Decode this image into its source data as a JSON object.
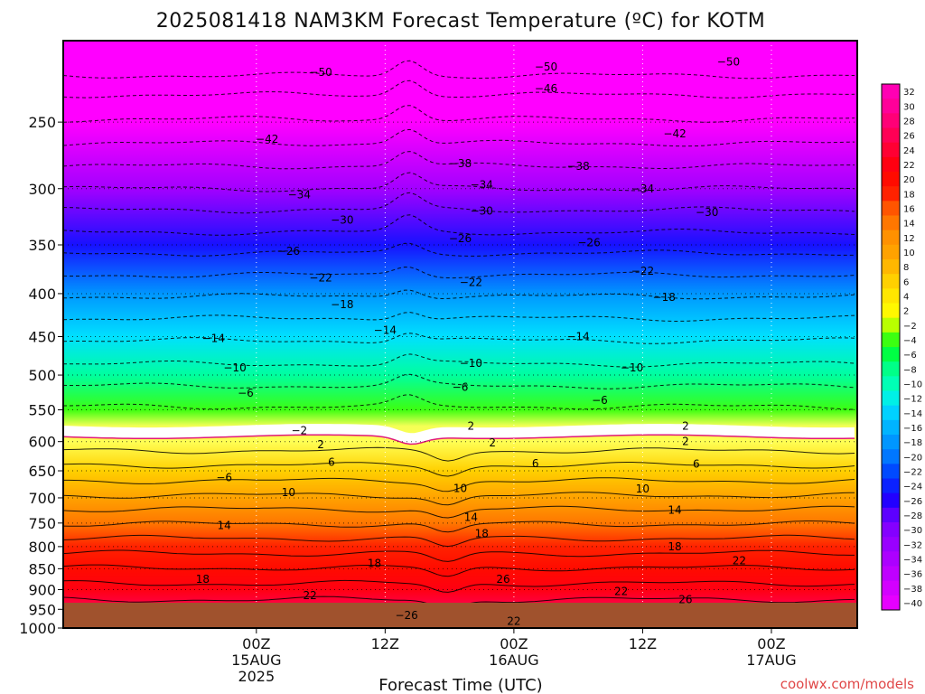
{
  "chart_data": {
    "type": "heatmap",
    "title": "2025081418 NAM3KM Forecast Temperature (ºC) for KOTM",
    "xlabel": "Forecast Time (UTC)",
    "ylabel": "",
    "credit": "coolwx.com/models",
    "y_scale": "log",
    "y_inverted": true,
    "ylim": [
      1000,
      200
    ],
    "y_ticks": [
      250,
      300,
      350,
      400,
      450,
      500,
      550,
      600,
      650,
      700,
      750,
      800,
      850,
      900,
      950,
      1000
    ],
    "x_ticks": [
      {
        "line1": "00Z",
        "line2": "15AUG",
        "line3": "2025"
      },
      {
        "line1": "12Z",
        "line2": "",
        "line3": ""
      },
      {
        "line1": "00Z",
        "line2": "16AUG",
        "line3": ""
      },
      {
        "line1": "12Z",
        "line2": "",
        "line3": ""
      },
      {
        "line1": "00Z",
        "line2": "17AUG",
        "line3": ""
      }
    ],
    "colorbar_labels": [
      "32",
      "30",
      "28",
      "26",
      "24",
      "22",
      "20",
      "18",
      "16",
      "14",
      "12",
      "10",
      "8",
      "6",
      "4",
      "2",
      "−2",
      "−4",
      "−6",
      "−8",
      "−10",
      "−12",
      "−14",
      "−16",
      "−18",
      "−20",
      "−22",
      "−24",
      "−26",
      "−28",
      "−30",
      "−32",
      "−34",
      "−36",
      "−38",
      "−40"
    ],
    "colors": {
      "ground": "#a0522d",
      "freezing_band": "#ffffff",
      "freezing_line": "#e0197a"
    },
    "temperature_profile": [
      {
        "p": 200,
        "t": -56
      },
      {
        "p": 250,
        "t": -44
      },
      {
        "p": 300,
        "t": -33
      },
      {
        "p": 350,
        "t": -25
      },
      {
        "p": 400,
        "t": -18
      },
      {
        "p": 450,
        "t": -13
      },
      {
        "p": 500,
        "t": -9
      },
      {
        "p": 550,
        "t": -4
      },
      {
        "p": 575,
        "t": -1
      },
      {
        "p": 600,
        "t": 1
      },
      {
        "p": 650,
        "t": 6
      },
      {
        "p": 700,
        "t": 10
      },
      {
        "p": 750,
        "t": 14
      },
      {
        "p": 800,
        "t": 18
      },
      {
        "p": 850,
        "t": 20
      },
      {
        "p": 900,
        "t": 22
      },
      {
        "p": 950,
        "t": 26
      },
      {
        "p": 975,
        "t": 29
      }
    ],
    "contour_labels": [
      {
        "text": "−50",
        "hour": 6,
        "p": 218
      },
      {
        "text": "−50",
        "hour": 27,
        "p": 215
      },
      {
        "text": "−46",
        "hour": 27,
        "p": 228
      },
      {
        "text": "−50",
        "hour": 44,
        "p": 212
      },
      {
        "text": "−42",
        "hour": 1,
        "p": 262
      },
      {
        "text": "−42",
        "hour": 39,
        "p": 258
      },
      {
        "text": "−38",
        "hour": 19,
        "p": 280
      },
      {
        "text": "−38",
        "hour": 30,
        "p": 282
      },
      {
        "text": "−34",
        "hour": 4,
        "p": 305
      },
      {
        "text": "−34",
        "hour": 21,
        "p": 297
      },
      {
        "text": "−34",
        "hour": 36,
        "p": 300
      },
      {
        "text": "−30",
        "hour": 8,
        "p": 327
      },
      {
        "text": "−30",
        "hour": 21,
        "p": 319
      },
      {
        "text": "−30",
        "hour": 42,
        "p": 320
      },
      {
        "text": "−26",
        "hour": 3,
        "p": 356
      },
      {
        "text": "−26",
        "hour": 19,
        "p": 344
      },
      {
        "text": "−26",
        "hour": 31,
        "p": 348
      },
      {
        "text": "−22",
        "hour": 6,
        "p": 383
      },
      {
        "text": "−22",
        "hour": 20,
        "p": 388
      },
      {
        "text": "−22",
        "hour": 36,
        "p": 376
      },
      {
        "text": "−18",
        "hour": 8,
        "p": 412
      },
      {
        "text": "−18",
        "hour": 38,
        "p": 404
      },
      {
        "text": "−14",
        "hour": -4,
        "p": 452
      },
      {
        "text": "−14",
        "hour": 12,
        "p": 442
      },
      {
        "text": "−14",
        "hour": 30,
        "p": 450
      },
      {
        "text": "−10",
        "hour": -2,
        "p": 490
      },
      {
        "text": "−10",
        "hour": 20,
        "p": 484
      },
      {
        "text": "−10",
        "hour": 35,
        "p": 490
      },
      {
        "text": "−6",
        "hour": -1,
        "p": 525
      },
      {
        "text": "−6",
        "hour": 19,
        "p": 517
      },
      {
        "text": "−6",
        "hour": 32,
        "p": 536
      },
      {
        "text": "−2",
        "hour": 4,
        "p": 582
      },
      {
        "text": "2",
        "hour": 20,
        "p": 575
      },
      {
        "text": "2",
        "hour": 40,
        "p": 575
      },
      {
        "text": "2",
        "hour": 6,
        "p": 605
      },
      {
        "text": "2",
        "hour": 22,
        "p": 602
      },
      {
        "text": "2",
        "hour": 40,
        "p": 600
      },
      {
        "text": "6",
        "hour": 7,
        "p": 635
      },
      {
        "text": "6",
        "hour": 26,
        "p": 637
      },
      {
        "text": "6",
        "hour": 41,
        "p": 638
      },
      {
        "text": "−6",
        "hour": -3,
        "p": 662
      },
      {
        "text": "10",
        "hour": 3,
        "p": 690
      },
      {
        "text": "10",
        "hour": 19,
        "p": 682
      },
      {
        "text": "10",
        "hour": 36,
        "p": 683
      },
      {
        "text": "14",
        "hour": -3,
        "p": 755
      },
      {
        "text": "14",
        "hour": 20,
        "p": 738
      },
      {
        "text": "18",
        "hour": 21,
        "p": 772
      },
      {
        "text": "14",
        "hour": 39,
        "p": 724
      },
      {
        "text": "18",
        "hour": 11,
        "p": 838
      },
      {
        "text": "18",
        "hour": 39,
        "p": 800
      },
      {
        "text": "18",
        "hour": -5,
        "p": 875
      },
      {
        "text": "22",
        "hour": 5,
        "p": 915
      },
      {
        "text": "22",
        "hour": 24,
        "p": 982
      },
      {
        "text": "22",
        "hour": 34,
        "p": 905
      },
      {
        "text": "22",
        "hour": 45,
        "p": 832
      },
      {
        "text": "26",
        "hour": 23,
        "p": 875
      },
      {
        "text": "26",
        "hour": 40,
        "p": 925
      },
      {
        "text": "−26",
        "hour": 14,
        "p": 966
      }
    ]
  }
}
